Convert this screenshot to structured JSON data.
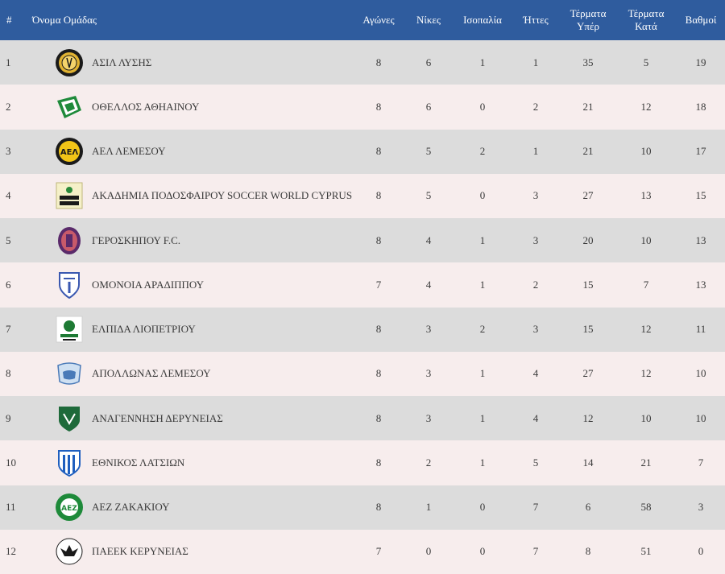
{
  "headers": {
    "rank": "#",
    "team": "Όνομα Ομάδας",
    "played": "Αγώνες",
    "wins": "Νίκες",
    "draws": "Ισοπαλία",
    "losses": "Ήττες",
    "goals_for_1": "Τέρματα",
    "goals_for_2": "Υπέρ",
    "goals_against_1": "Τέρματα",
    "goals_against_2": "Κατά",
    "points": "Βαθμοί"
  },
  "rows": [
    {
      "rank": "1",
      "team": "ΑΣΙΛ ΛΥΣΗΣ",
      "logo": "asil-lysis-crest",
      "played": "8",
      "wins": "6",
      "draws": "1",
      "losses": "1",
      "gf": "35",
      "ga": "5",
      "pts": "19"
    },
    {
      "rank": "2",
      "team": "ΟΘΕΛΛΟΣ ΑΘΗΑΙΝΟΥ",
      "logo": "othellos-crest",
      "played": "8",
      "wins": "6",
      "draws": "0",
      "losses": "2",
      "gf": "21",
      "ga": "12",
      "pts": "18"
    },
    {
      "rank": "3",
      "team": "ΑΕΛ ΛΕΜΕΣΟΥ",
      "logo": "ael-crest",
      "played": "8",
      "wins": "5",
      "draws": "2",
      "losses": "1",
      "gf": "21",
      "ga": "10",
      "pts": "17"
    },
    {
      "rank": "4",
      "team": "ΑΚΑΔΗΜΙΑ ΠΟΔΟΣΦΑΙΡΟΥ SOCCER WORLD CYPRUS",
      "logo": "soccer-world-crest",
      "played": "8",
      "wins": "5",
      "draws": "0",
      "losses": "3",
      "gf": "27",
      "ga": "13",
      "pts": "15"
    },
    {
      "rank": "5",
      "team": "ΓΕΡΟΣΚΗΠΟΥ F.C.",
      "logo": "geroskipou-crest",
      "played": "8",
      "wins": "4",
      "draws": "1",
      "losses": "3",
      "gf": "20",
      "ga": "10",
      "pts": "13"
    },
    {
      "rank": "6",
      "team": "ΟΜΟΝΟΙΑ ΑΡΑΔΙΠΠΟΥ",
      "logo": "omonia-aradippou-crest",
      "played": "7",
      "wins": "4",
      "draws": "1",
      "losses": "2",
      "gf": "15",
      "ga": "7",
      "pts": "13"
    },
    {
      "rank": "7",
      "team": "ΕΛΠΙΔΑ ΛΙΟΠΕΤΡΙΟΥ",
      "logo": "elpida-liopetriou-crest",
      "played": "8",
      "wins": "3",
      "draws": "2",
      "losses": "3",
      "gf": "15",
      "ga": "12",
      "pts": "11"
    },
    {
      "rank": "8",
      "team": "ΑΠΟΛΛΩΝΑΣ ΛΕΜΕΣΟΥ",
      "logo": "apollon-crest",
      "played": "8",
      "wins": "3",
      "draws": "1",
      "losses": "4",
      "gf": "27",
      "ga": "12",
      "pts": "10"
    },
    {
      "rank": "9",
      "team": "ΑΝΑΓΕΝΝΗΣΗ ΔΕΡΥΝΕΙΑΣ",
      "logo": "anagennisi-crest",
      "played": "8",
      "wins": "3",
      "draws": "1",
      "losses": "4",
      "gf": "12",
      "ga": "10",
      "pts": "10"
    },
    {
      "rank": "10",
      "team": "ΕΘΝΙΚΟΣ ΛΑΤΣΙΩΝ",
      "logo": "ethnikos-latsion-crest",
      "played": "8",
      "wins": "2",
      "draws": "1",
      "losses": "5",
      "gf": "14",
      "ga": "21",
      "pts": "7"
    },
    {
      "rank": "11",
      "team": "ΑΕΖ ΖΑΚΑΚΙΟΥ",
      "logo": "aez-crest",
      "played": "8",
      "wins": "1",
      "draws": "0",
      "losses": "7",
      "gf": "6",
      "ga": "58",
      "pts": "3"
    },
    {
      "rank": "12",
      "team": "ΠΑΕΕΚ ΚΕΡΥΝΕΙΑΣ",
      "logo": "paeek-crest",
      "played": "7",
      "wins": "0",
      "draws": "0",
      "losses": "7",
      "gf": "8",
      "ga": "51",
      "pts": "0"
    }
  ],
  "colors": {
    "header_bg": "#2f5c9e",
    "row_odd": "#dcdcdc",
    "row_even": "#f7eded"
  }
}
